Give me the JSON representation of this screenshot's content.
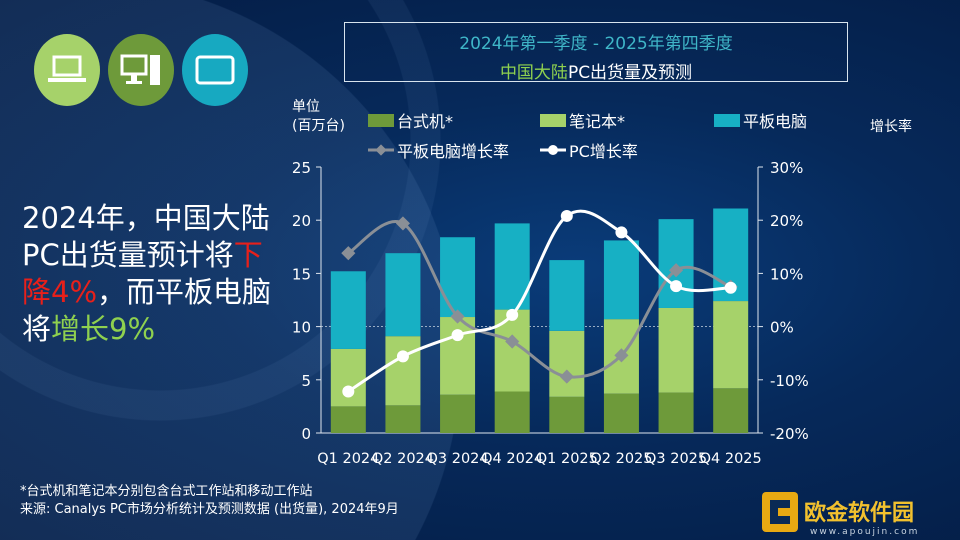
{
  "title_box": {
    "line1": "2024年第一季度 - 2025年第四季度",
    "line2_a": "中国大陆",
    "line2_b": "PC出货量及预测"
  },
  "icons": [
    {
      "name": "laptop-icon",
      "color": "#a6d26a"
    },
    {
      "name": "desktop-icon",
      "color": "#6e9a3a"
    },
    {
      "name": "tablet-icon",
      "color": "#17a9c1"
    }
  ],
  "headline": {
    "p1": "2024年，中国大陆PC出货量预计将",
    "decline": "下降4%",
    "p2": "，而平板电脑将",
    "growth": "增长9%"
  },
  "headline_colors": {
    "decline": "#e8201a",
    "growth": "#8fd14f"
  },
  "footnotes": {
    "note": "*台式机和笔记本分别包含台式工作站和移动工作站",
    "source": "来源: Canalys PC市场分析统计及预测数据 (出货量), 2024年9月"
  },
  "watermark": {
    "name": "欧金软件园",
    "url": "www.apoujin.com"
  },
  "chart_data": {
    "type": "bar",
    "stacked": true,
    "categories": [
      "Q1 2024",
      "Q2 2024",
      "Q3 2024",
      "Q4 2024",
      "Q1 2025",
      "Q2 2025",
      "Q3 2025",
      "Q4 2025"
    ],
    "ylabel": "单位\n(百万台)",
    "ylabel_line1": "单位",
    "ylabel_line2": "(百万台)",
    "y2label": "增长率",
    "ylim": [
      0,
      25
    ],
    "yticks": [
      0,
      5,
      10,
      15,
      20,
      25
    ],
    "y2lim": [
      -20,
      30
    ],
    "y2ticks": [
      "-20%",
      "-10%",
      "0%",
      "10%",
      "20%",
      "30%"
    ],
    "y2tick_values": [
      -20,
      -10,
      0,
      10,
      20,
      30
    ],
    "legend_position": "top",
    "series": [
      {
        "name": "台式机*",
        "kind": "bar",
        "color": "#6e9a3a",
        "values": [
          2.5,
          2.6,
          3.6,
          3.9,
          3.4,
          3.7,
          3.8,
          4.2
        ]
      },
      {
        "name": "笔记本*",
        "kind": "bar",
        "color": "#a6d26a",
        "values": [
          5.4,
          6.5,
          7.3,
          7.7,
          6.2,
          7.0,
          7.95,
          8.2
        ]
      },
      {
        "name": "平板电脑",
        "kind": "bar",
        "color": "#17b0c4",
        "values": [
          7.3,
          7.8,
          7.5,
          8.1,
          6.65,
          7.4,
          8.35,
          8.7
        ]
      },
      {
        "name": "平板电脑增长率",
        "kind": "line",
        "axis": "right",
        "color": "#8a8f96",
        "marker": "diamond",
        "values": [
          13.8,
          19.4,
          1.9,
          -2.8,
          -9.4,
          -5.4,
          10.6,
          7.5
        ]
      },
      {
        "name": "PC增长率",
        "kind": "line",
        "axis": "right",
        "color": "#ffffff",
        "marker": "circle",
        "values": [
          -12.2,
          -5.6,
          -1.6,
          2.2,
          20.8,
          17.7,
          7.6,
          7.3
        ]
      }
    ]
  }
}
